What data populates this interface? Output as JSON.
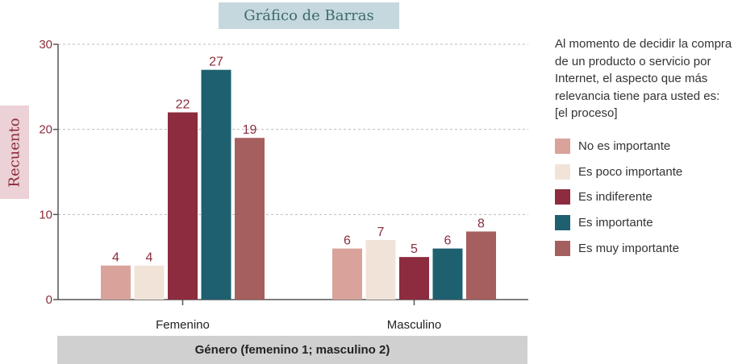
{
  "chart_data": {
    "type": "bar",
    "title": "Gráfico de Barras",
    "ylabel": "Recuento",
    "xlabel": "Género (femenino 1; masculino 2)",
    "categories": [
      "Femenino",
      "Masculino"
    ],
    "ylim": [
      0,
      30
    ],
    "yticks": [
      0,
      10,
      20,
      30
    ],
    "grid": true,
    "legend_position": "right",
    "legend_title": "Al momento de decidir la compra de un producto o servicio por Internet, el aspecto que más relevancia tiene para usted es: [el proceso]",
    "series": [
      {
        "name": "No es importante",
        "color": "#d9a39b",
        "values": [
          4,
          6
        ]
      },
      {
        "name": "Es poco importante",
        "color": "#f2e3d8",
        "values": [
          4,
          7
        ]
      },
      {
        "name": "Es indiferente",
        "color": "#8c2c3e",
        "values": [
          22,
          5
        ]
      },
      {
        "name": "Es importante",
        "color": "#1f6070",
        "values": [
          27,
          6
        ]
      },
      {
        "name": "Es muy importante",
        "color": "#a65f5f",
        "values": [
          19,
          8
        ]
      }
    ]
  },
  "colors": {
    "label_color": "#8b2d3c",
    "axis_color": "#555555",
    "grid_color": "#bbbbbb"
  }
}
